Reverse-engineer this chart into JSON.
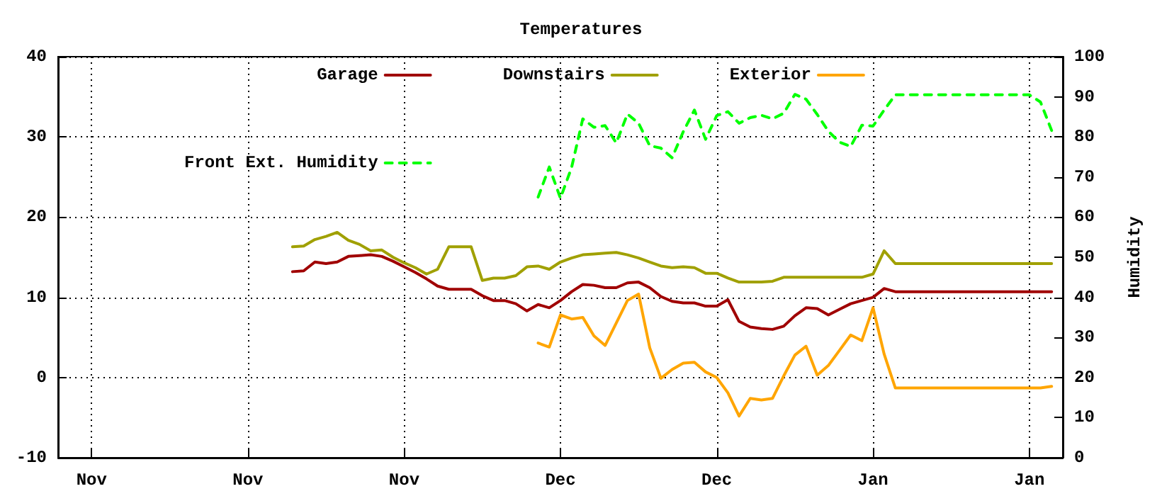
{
  "chart_data": {
    "type": "line",
    "title": "Temperatures",
    "y2label": "Humidity",
    "categories": [
      null,
      null,
      null,
      "Nov",
      null,
      null,
      null,
      null,
      null,
      null,
      null,
      null,
      null,
      null,
      null,
      null,
      null,
      "Nov",
      null,
      null,
      null,
      null,
      null,
      null,
      null,
      null,
      null,
      null,
      null,
      null,
      null,
      "Nov",
      null,
      null,
      null,
      null,
      null,
      null,
      null,
      null,
      null,
      null,
      null,
      null,
      null,
      "Dec",
      null,
      null,
      null,
      null,
      null,
      null,
      null,
      null,
      null,
      null,
      null,
      null,
      null,
      "Dec",
      null,
      null,
      null,
      null,
      null,
      null,
      null,
      null,
      null,
      null,
      null,
      null,
      null,
      "Jan",
      null,
      null,
      null,
      null,
      null,
      null,
      null,
      null,
      null,
      null,
      null,
      null,
      null,
      "Jan",
      null,
      null,
      null
    ],
    "ylim": [
      -10,
      40
    ],
    "yticks": [
      -10,
      0,
      10,
      20,
      30,
      40
    ],
    "y2lim": [
      0,
      100
    ],
    "y2ticks": [
      0,
      10,
      20,
      30,
      40,
      50,
      60,
      70,
      80,
      90,
      100
    ],
    "grid": true,
    "legend": "top",
    "series": [
      {
        "name": "Garage",
        "color": "#a00000",
        "line_style": "solid",
        "values": [
          null,
          null,
          null,
          null,
          null,
          null,
          null,
          null,
          null,
          null,
          null,
          null,
          null,
          null,
          null,
          null,
          null,
          null,
          null,
          null,
          null,
          13.2,
          13.3,
          14.4,
          14.2,
          14.4,
          15.1,
          15.2,
          15.3,
          15.1,
          14.5,
          13.8,
          13.1,
          12.3,
          11.4,
          11.0,
          11.0,
          11.0,
          10.2,
          9.6,
          9.6,
          9.2,
          8.3,
          9.1,
          8.7,
          9.6,
          10.7,
          11.6,
          11.5,
          11.2,
          11.2,
          11.8,
          11.9,
          11.2,
          10.1,
          9.5,
          9.3,
          9.3,
          8.9,
          8.9,
          9.7,
          7.0,
          6.3,
          6.1,
          6.0,
          6.4,
          7.7,
          8.7,
          8.6,
          7.8,
          8.5,
          9.2,
          9.6,
          10.0,
          11.1,
          10.7,
          10.7,
          10.7,
          10.7,
          10.7,
          10.7,
          10.7,
          10.7,
          10.7,
          10.7,
          10.7,
          10.7,
          10.7,
          10.7,
          10.7,
          null
        ]
      },
      {
        "name": "Downstairs",
        "color": "#a0a000",
        "line_style": "solid",
        "values": [
          null,
          null,
          null,
          null,
          null,
          null,
          null,
          null,
          null,
          null,
          null,
          null,
          null,
          null,
          null,
          null,
          null,
          null,
          null,
          null,
          null,
          16.3,
          16.4,
          17.2,
          17.6,
          18.1,
          17.1,
          16.6,
          15.8,
          15.9,
          15.0,
          14.3,
          13.7,
          12.9,
          13.5,
          16.3,
          16.3,
          16.3,
          12.1,
          12.4,
          12.4,
          12.7,
          13.8,
          13.9,
          13.5,
          14.4,
          14.9,
          15.3,
          15.4,
          15.5,
          15.6,
          15.3,
          14.9,
          14.4,
          13.9,
          13.7,
          13.8,
          13.7,
          13.0,
          13.0,
          12.4,
          11.9,
          11.9,
          11.9,
          12.0,
          12.5,
          12.5,
          12.5,
          12.5,
          12.5,
          12.5,
          12.5,
          12.5,
          12.9,
          15.8,
          14.2,
          14.2,
          14.2,
          14.2,
          14.2,
          14.2,
          14.2,
          14.2,
          14.2,
          14.2,
          14.2,
          14.2,
          14.2,
          14.2,
          14.2,
          null
        ]
      },
      {
        "name": "Exterior",
        "color": "#ffa500",
        "line_style": "solid",
        "values": [
          null,
          null,
          null,
          null,
          null,
          null,
          null,
          null,
          null,
          null,
          null,
          null,
          null,
          null,
          null,
          null,
          null,
          null,
          null,
          null,
          null,
          null,
          null,
          null,
          null,
          null,
          null,
          null,
          null,
          null,
          null,
          null,
          null,
          null,
          null,
          null,
          null,
          null,
          null,
          null,
          null,
          null,
          null,
          4.3,
          3.8,
          7.8,
          7.3,
          7.5,
          5.2,
          4.0,
          6.8,
          9.6,
          10.4,
          3.7,
          -0.1,
          1.0,
          1.8,
          1.9,
          0.7,
          0.0,
          -1.9,
          -4.8,
          -2.6,
          -2.8,
          -2.6,
          0.2,
          2.8,
          3.9,
          0.3,
          1.5,
          3.4,
          5.3,
          4.6,
          8.7,
          2.9,
          -1.3,
          -1.3,
          -1.3,
          -1.3,
          -1.3,
          -1.3,
          -1.3,
          -1.3,
          -1.3,
          -1.3,
          -1.3,
          -1.3,
          -1.3,
          -1.3,
          -1.1,
          null
        ]
      },
      {
        "name": "Front Ext. Humidity",
        "color": "#00ff00",
        "line_style": "dashed",
        "axis": "y2",
        "values": [
          null,
          null,
          null,
          null,
          null,
          null,
          null,
          null,
          null,
          null,
          null,
          null,
          null,
          null,
          null,
          null,
          null,
          null,
          null,
          null,
          null,
          null,
          null,
          null,
          null,
          null,
          null,
          null,
          null,
          null,
          null,
          null,
          null,
          null,
          null,
          null,
          null,
          null,
          null,
          null,
          null,
          null,
          null,
          65.0,
          72.5,
          64.7,
          72.4,
          84.5,
          82.4,
          82.8,
          78.5,
          85.7,
          83.4,
          77.8,
          77.2,
          74.8,
          81.3,
          86.7,
          79.4,
          85.3,
          86.3,
          83.4,
          84.8,
          85.4,
          84.5,
          85.9,
          90.6,
          89.4,
          85.6,
          81.4,
          78.7,
          77.6,
          82.9,
          82.7,
          86.7,
          90.5,
          90.5,
          90.5,
          90.5,
          90.5,
          90.5,
          90.5,
          90.5,
          90.5,
          90.5,
          90.5,
          90.5,
          90.5,
          88.7,
          81.6,
          null
        ]
      }
    ]
  }
}
